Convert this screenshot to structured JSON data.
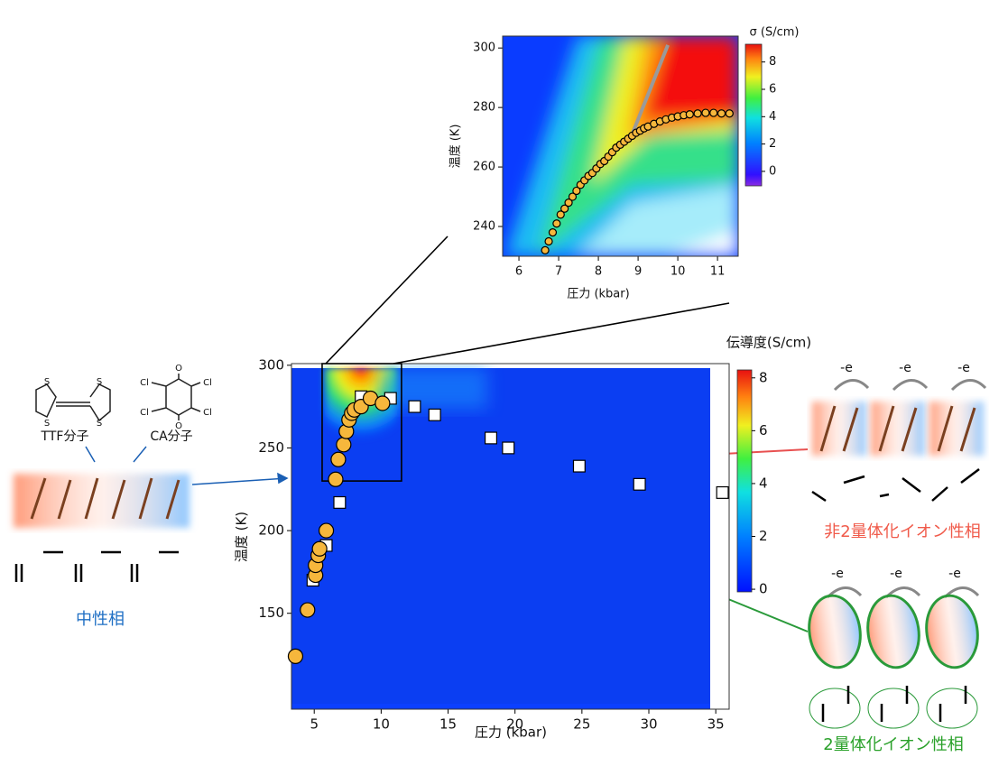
{
  "chart_data": [
    {
      "type": "scatter",
      "xlabel": "圧力 (kbar)",
      "ylabel": "温度 (K)",
      "xlim": [
        3.3,
        36
      ],
      "ylim": [
        92,
        301
      ],
      "xticks": [
        5,
        10,
        15,
        20,
        25,
        30,
        35
      ],
      "yticks": [
        150,
        200,
        250,
        300
      ],
      "colorbar": {
        "label": "伝導度(S/cm)",
        "lim": [
          -0.1,
          8.3
        ],
        "ticks": [
          0,
          2,
          4,
          6,
          8
        ]
      },
      "series": [
        {
          "marker": "square",
          "color": "#ffffff",
          "x": [
            4.9,
            5.9,
            6.9,
            8.5,
            10.7,
            12.5,
            14.0,
            18.2,
            19.5,
            24.8,
            29.3,
            35.5
          ],
          "values": [
            170,
            191,
            217,
            281,
            280,
            275,
            270,
            256,
            250,
            239,
            228,
            223
          ]
        },
        {
          "marker": "circle",
          "color": "#f6b73c",
          "x": [
            3.6,
            4.5,
            5.1,
            5.1,
            5.3,
            5.4,
            5.9,
            6.6,
            6.8,
            7.2,
            7.4,
            7.6,
            7.8,
            8.0,
            8.5,
            9.2,
            10.1
          ],
          "values": [
            124,
            152,
            173,
            179,
            185,
            189,
            200,
            231,
            243,
            252,
            260,
            267,
            271,
            273,
            275,
            280,
            277
          ]
        }
      ]
    },
    {
      "type": "scatter",
      "xlabel": "圧力 (kbar)",
      "ylabel": "温度 (K)",
      "xlim": [
        5.59,
        11.52
      ],
      "ylim": [
        230,
        304
      ],
      "xticks": [
        6,
        7,
        8,
        9,
        10,
        11
      ],
      "yticks": [
        240,
        260,
        280,
        300
      ],
      "colorbar": {
        "label": "σ (S/cm)",
        "lim": [
          -1.06,
          9.3
        ],
        "ticks": [
          0,
          2,
          4,
          6,
          8
        ]
      },
      "line": {
        "color": "#9a9a9a",
        "x": [
          8.85,
          9.75
        ],
        "y": [
          271,
          301
        ]
      },
      "series": [
        {
          "marker": "circle",
          "color": "#f6b73c",
          "x": [
            6.66,
            6.75,
            6.85,
            6.95,
            7.05,
            7.15,
            7.25,
            7.35,
            7.45,
            7.55,
            7.65,
            7.75,
            7.85,
            7.95,
            8.05,
            8.15,
            8.25,
            8.35,
            8.45,
            8.55,
            8.65,
            8.75,
            8.85,
            8.95,
            9.05,
            9.15,
            9.25,
            9.4,
            9.55,
            9.7,
            9.85,
            10.0,
            10.15,
            10.3,
            10.5,
            10.7,
            10.9,
            11.1,
            11.3
          ],
          "values": [
            232,
            235,
            238,
            241,
            244,
            246,
            248,
            250,
            252,
            254,
            255.5,
            257,
            258,
            259.5,
            261,
            262,
            263.5,
            265,
            266.5,
            267.5,
            268.5,
            269.5,
            270.5,
            271.5,
            272.2,
            273,
            273.6,
            274.5,
            275.3,
            276,
            276.6,
            277,
            277.4,
            277.7,
            278,
            278.2,
            278.2,
            278,
            278
          ]
        }
      ]
    }
  ],
  "labels": {
    "ttf": "TTF分子",
    "ca": "CA分子",
    "ttf_atoms": [
      "S",
      "S",
      "S",
      "S"
    ],
    "ca_atoms": [
      "O",
      "Cl",
      "Cl",
      "Cl",
      "Cl",
      "O"
    ],
    "neutral": "中性相",
    "ionic_nondimer": "非2量体化イオン性相",
    "ionic_dimer": "2量体化イオン性相",
    "electrons": [
      "-e",
      "-e",
      "-e",
      "-e",
      "-e",
      "-e"
    ]
  }
}
